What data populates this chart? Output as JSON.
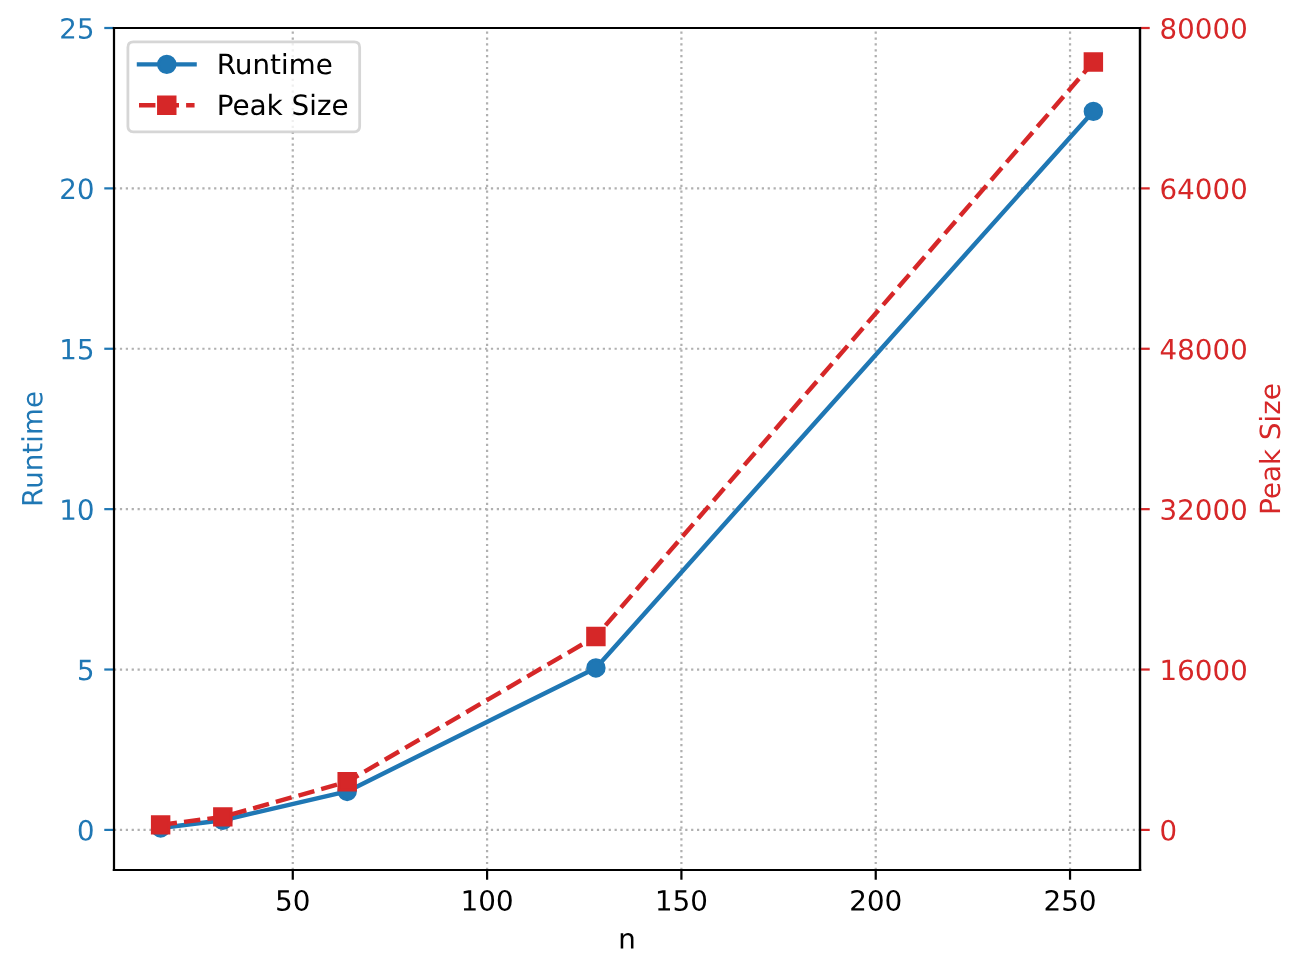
{
  "chart_data": {
    "type": "line",
    "xlabel": "n",
    "ylabel": "Runtime",
    "y2label": "Peak Size",
    "x": [
      16,
      32,
      64,
      128,
      256
    ],
    "series": [
      {
        "name": "Runtime",
        "color": "#1f77b4",
        "values": [
          0.06,
          0.3,
          1.2,
          5.05,
          22.4
        ],
        "marker": "circle",
        "line_style": "solid"
      },
      {
        "name": "Peak Size",
        "color": "#d62728",
        "values": [
          500,
          1300,
          4800,
          19300,
          76600
        ],
        "axis": "y2",
        "marker": "square",
        "line_style": "dashed"
      }
    ],
    "xlim": [
      4,
      268
    ],
    "xticks": [
      50,
      100,
      150,
      200,
      250
    ],
    "ylim": [
      -1.25,
      25
    ],
    "yticks": [
      0,
      5,
      10,
      15,
      20,
      25
    ],
    "y2lim": [
      -4000,
      80000
    ],
    "y2ticks": [
      0,
      16000,
      32000,
      48000,
      64000,
      80000
    ],
    "grid": true,
    "legend": "top left"
  }
}
